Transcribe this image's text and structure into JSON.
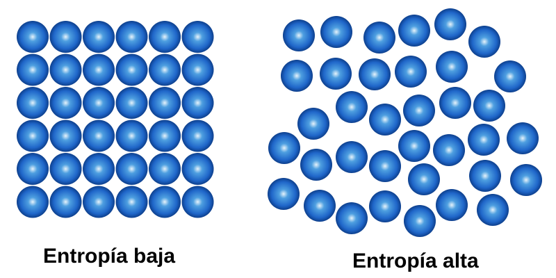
{
  "labels": {
    "low_entropy": "Entropía baja",
    "high_entropy": "Entropía alta"
  },
  "colors": {
    "particle_highlight": "#e6f3fb",
    "particle_mid": "#4e9fe0",
    "particle_body": "#1f66c9",
    "particle_edge": "#0d3f8c",
    "text": "#000000"
  },
  "panels": {
    "low_entropy": {
      "arrangement": "ordered grid",
      "rows": 6,
      "columns": 6,
      "particle_count": 36
    },
    "high_entropy": {
      "arrangement": "random",
      "particle_count": 38
    }
  }
}
